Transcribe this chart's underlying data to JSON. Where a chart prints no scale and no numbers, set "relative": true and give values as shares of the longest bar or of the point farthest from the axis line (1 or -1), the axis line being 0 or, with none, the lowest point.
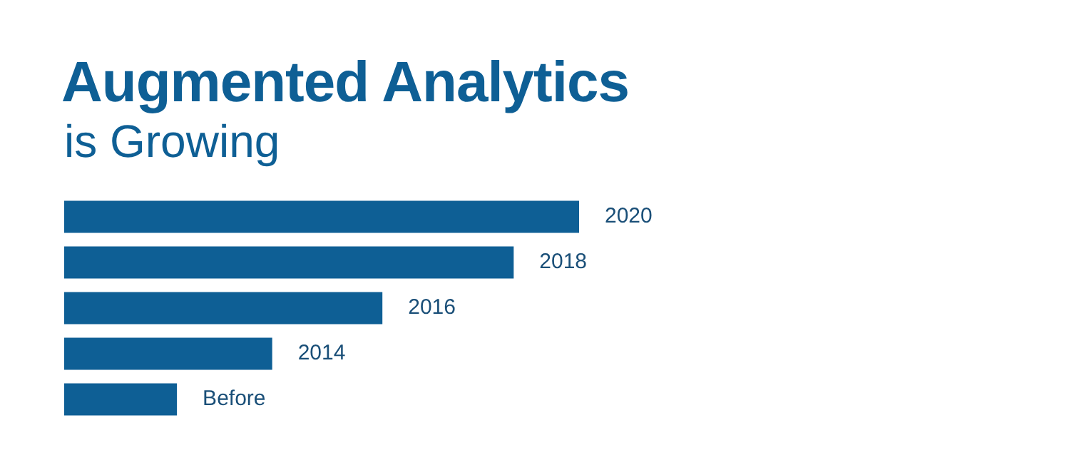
{
  "chart_data": {
    "type": "bar",
    "orientation": "horizontal",
    "relative": true,
    "title": "Augmented Analytics",
    "subtitle": "is Growing",
    "categories": [
      "2020",
      "2018",
      "2016",
      "2014",
      "Before"
    ],
    "values": [
      1,
      0.873,
      0.618,
      0.404,
      0.219
    ],
    "color": "#0e5f95"
  }
}
